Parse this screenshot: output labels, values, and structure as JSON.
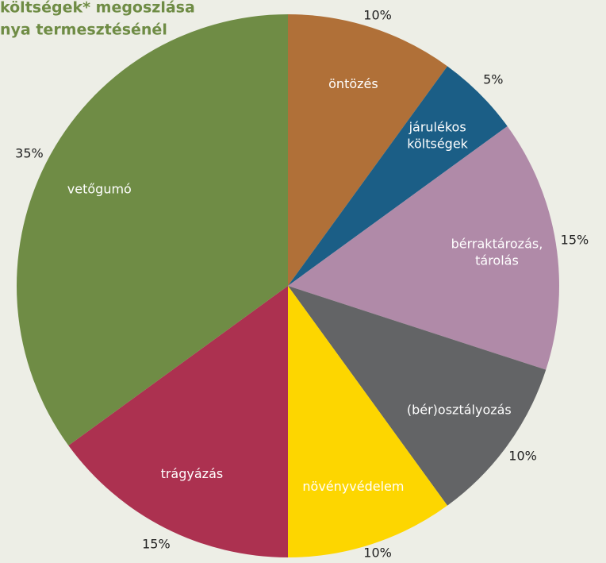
{
  "chart_data": {
    "type": "pie",
    "title": [
      "költségek* megoszlása",
      "nya termesztésénél"
    ],
    "categories": [
      [
        "öntözés"
      ],
      [
        "járulékos",
        "költségek"
      ],
      [
        "bérraktározás,",
        "tárolás"
      ],
      [
        "(bér)osztályozás"
      ],
      [
        "növényvédelem"
      ],
      [
        "trágyázás"
      ],
      [
        "vetőgumó"
      ]
    ],
    "values": [
      10,
      5,
      15,
      10,
      10,
      15,
      35
    ],
    "value_labels": [
      "10%",
      "5%",
      "15%",
      "10%",
      "10%",
      "15%",
      "35%"
    ],
    "colors": [
      "#b07038",
      "#1b5e86",
      "#b08aa8",
      "#636466",
      "#fdd600",
      "#ac3150",
      "#6f8c45"
    ]
  }
}
